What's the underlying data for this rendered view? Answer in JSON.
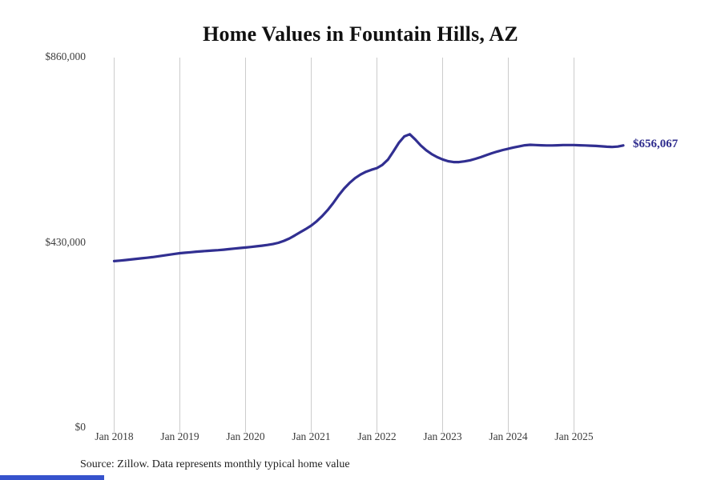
{
  "chart_data": {
    "type": "line",
    "title": "Home Values in Fountain Hills, AZ",
    "source_note": "Source: Zillow. Data represents monthly typical home value",
    "series_name": "Monthly typical home value",
    "x_unit": "month",
    "x_start": "Jan 2018",
    "x_end": "Oct 2025",
    "ylim": [
      0,
      860000
    ],
    "grid": "vertical-only",
    "legend": "none",
    "end_label": "$656,067",
    "final_value": 656067,
    "y_ticks": [
      {
        "label": "$860,000",
        "value": 860000
      },
      {
        "label": "$430,000",
        "value": 430000
      },
      {
        "label": "$0",
        "value": 0
      }
    ],
    "x_ticks": [
      {
        "label": "Jan 2018",
        "month_index": 0
      },
      {
        "label": "Jan 2019",
        "month_index": 12
      },
      {
        "label": "Jan 2020",
        "month_index": 24
      },
      {
        "label": "Jan 2021",
        "month_index": 36
      },
      {
        "label": "Jan 2022",
        "month_index": 48
      },
      {
        "label": "Jan 2023",
        "month_index": 60
      },
      {
        "label": "Jan 2024",
        "month_index": 72
      },
      {
        "label": "Jan 2025",
        "month_index": 84
      }
    ],
    "values": [
      387500,
      388600,
      389800,
      391200,
      392600,
      393900,
      395200,
      396800,
      398600,
      400500,
      402300,
      404200,
      405800,
      407000,
      408100,
      409300,
      410400,
      411300,
      412100,
      413000,
      414100,
      415400,
      416700,
      417900,
      419000,
      420300,
      421800,
      423300,
      424900,
      427000,
      430000,
      434500,
      440000,
      447000,
      454500,
      462000,
      470000,
      480000,
      492000,
      506000,
      522000,
      540000,
      556000,
      569000,
      580000,
      588500,
      595000,
      599500,
      603500,
      611000,
      623000,
      642000,
      662000,
      677000,
      682000,
      670000,
      656000,
      645000,
      636000,
      629000,
      623500,
      619500,
      617500,
      617500,
      619000,
      621500,
      625000,
      629000,
      633500,
      638000,
      642000,
      645500,
      648500,
      651500,
      654000,
      656500,
      657500,
      657000,
      656500,
      656000,
      656000,
      656500,
      657000,
      657000,
      657000,
      656500,
      656000,
      655500,
      655000,
      654000,
      653000,
      652500,
      653500,
      656067
    ],
    "colors": {
      "line": "#312f91",
      "grid": "#cccccc",
      "title": "#111111",
      "axis_text": "#3d3d3d",
      "end_label": "#2f2d8e",
      "accent_bar": "#3652cc",
      "background": "#ffffff"
    }
  }
}
